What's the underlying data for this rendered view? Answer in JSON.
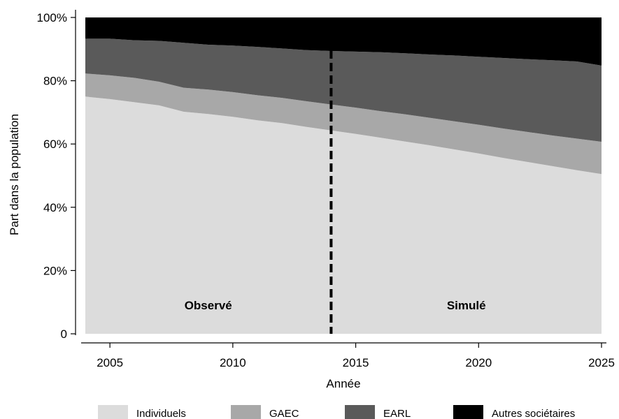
{
  "chart_data": {
    "type": "area",
    "stacked": true,
    "xlabel": "Année",
    "ylabel": "Part dans la population",
    "x": [
      2004,
      2005,
      2006,
      2007,
      2008,
      2009,
      2010,
      2011,
      2012,
      2013,
      2014,
      2015,
      2016,
      2017,
      2018,
      2019,
      2020,
      2021,
      2022,
      2023,
      2024,
      2025
    ],
    "xlim": [
      2004,
      2025
    ],
    "ylim": [
      0,
      100
    ],
    "x_ticks": [
      "2005",
      "2010",
      "2015",
      "2020",
      "2025"
    ],
    "y_ticks": [
      "0",
      "20%",
      "40%",
      "60%",
      "80%",
      "100%"
    ],
    "series": [
      {
        "name": "Individuels",
        "color": "#dcdcdc",
        "values": [
          75.0,
          74.2,
          73.2,
          72.2,
          70.2,
          69.5,
          68.6,
          67.5,
          66.6,
          65.4,
          64.3,
          63.2,
          62.0,
          60.8,
          59.6,
          58.3,
          57.0,
          55.6,
          54.3,
          53.0,
          51.7,
          50.5
        ]
      },
      {
        "name": "GAEC",
        "color": "#a8a8a8",
        "values": [
          7.3,
          7.5,
          7.7,
          7.5,
          7.6,
          7.7,
          7.8,
          7.9,
          8.0,
          8.1,
          8.2,
          8.3,
          8.4,
          8.6,
          8.7,
          8.9,
          9.1,
          9.3,
          9.5,
          9.7,
          10.0,
          10.2
        ]
      },
      {
        "name": "EARL",
        "color": "#5a5a5a",
        "values": [
          11.0,
          11.6,
          11.9,
          12.9,
          14.2,
          14.2,
          14.7,
          15.3,
          15.6,
          16.2,
          16.9,
          17.7,
          18.6,
          19.3,
          20.0,
          20.8,
          21.5,
          22.3,
          23.0,
          23.8,
          24.4,
          24.1
        ]
      },
      {
        "name": "Autres sociétaires",
        "color": "#000000",
        "values": [
          6.7,
          6.7,
          7.2,
          7.4,
          8.0,
          8.6,
          8.9,
          9.3,
          9.8,
          10.3,
          10.6,
          10.8,
          11.0,
          11.3,
          11.7,
          12.0,
          12.4,
          12.8,
          13.2,
          13.5,
          13.9,
          15.2
        ]
      }
    ],
    "divider_x": 2014,
    "annotations": [
      {
        "text": "Observé",
        "x": 2009,
        "y": 9
      },
      {
        "text": "Simulé",
        "x": 2019.5,
        "y": 9
      }
    ],
    "legend_position": "bottom",
    "grid": false
  }
}
